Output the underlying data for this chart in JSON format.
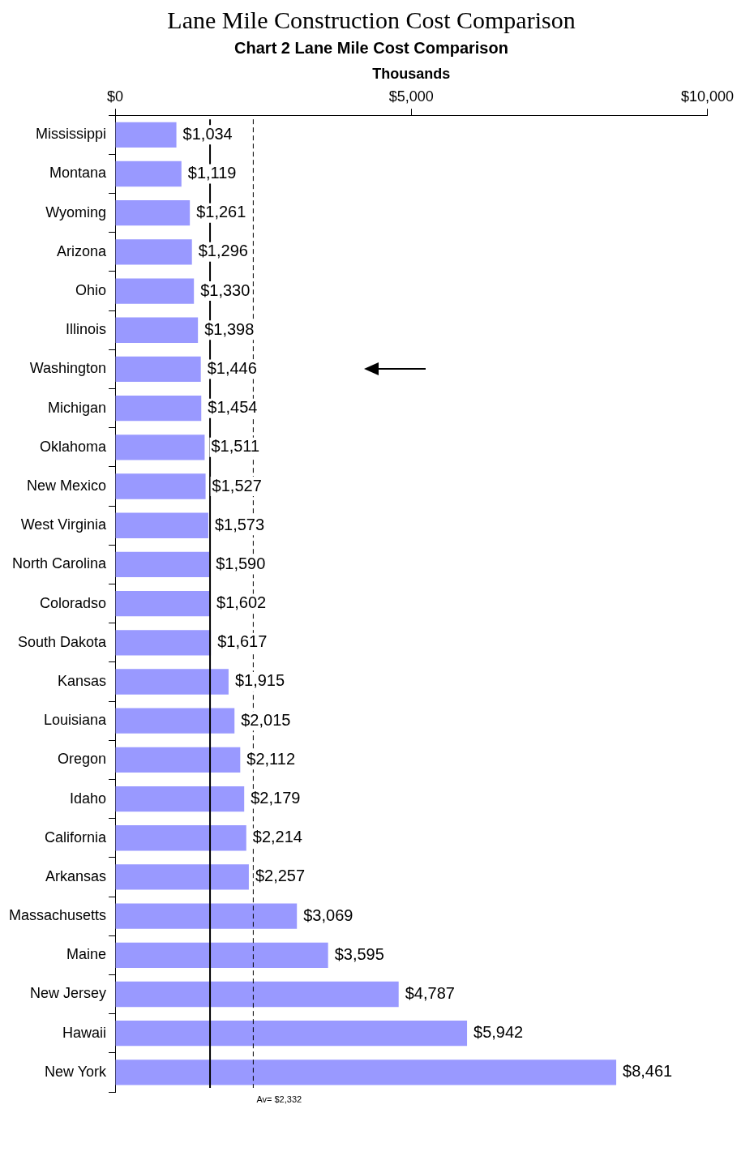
{
  "chart_data": {
    "type": "bar",
    "orientation": "horizontal",
    "title": "Lane Mile Construction Cost Comparison",
    "subtitle": "Chart 2 Lane Mile Cost Comparison",
    "xlabel": "Thousands",
    "categories": [
      "Mississippi",
      "Montana",
      "Wyoming",
      "Arizona",
      "Ohio",
      "Illinois",
      "Washington",
      "Michigan",
      "Oklahoma",
      "New Mexico",
      "West Virginia",
      "North Carolina",
      "Coloradso",
      "South Dakota",
      "Kansas",
      "Louisiana",
      "Oregon",
      "Idaho",
      "California",
      "Arkansas",
      "Massachusetts",
      "Maine",
      "New Jersey",
      "Hawaii",
      "New York"
    ],
    "values": [
      1034,
      1119,
      1261,
      1296,
      1330,
      1398,
      1446,
      1454,
      1511,
      1527,
      1573,
      1590,
      1602,
      1617,
      1915,
      2015,
      2112,
      2179,
      2214,
      2257,
      3069,
      3595,
      4787,
      5942,
      8461
    ],
    "value_labels": [
      "$1,034",
      "$1,119",
      "$1,261",
      "$1,296",
      "$1,330",
      "$1,398",
      "$1,446",
      "$1,454",
      "$1,511",
      "$1,527",
      "$1,573",
      "$1,590",
      "$1,602",
      "$1,617",
      "$1,915",
      "$2,015",
      "$2,112",
      "$2,179",
      "$2,214",
      "$2,257",
      "$3,069",
      "$3,595",
      "$4,787",
      "$5,942",
      "$8,461"
    ],
    "color": "#9999ff",
    "xlim": [
      0,
      10000
    ],
    "xticks": [
      {
        "value": 0,
        "label": "$0"
      },
      {
        "value": 5000,
        "label": "$5,000"
      },
      {
        "value": 10000,
        "label": "$10,000"
      }
    ],
    "ref_lines": [
      {
        "axis": "x",
        "value": 1602,
        "line_style": "solid",
        "color": "#000000"
      },
      {
        "axis": "x",
        "value": 2332,
        "label": "Av= $2,332",
        "line_style": "dashed",
        "color": "#000000"
      }
    ],
    "grid": false,
    "legend": false
  }
}
